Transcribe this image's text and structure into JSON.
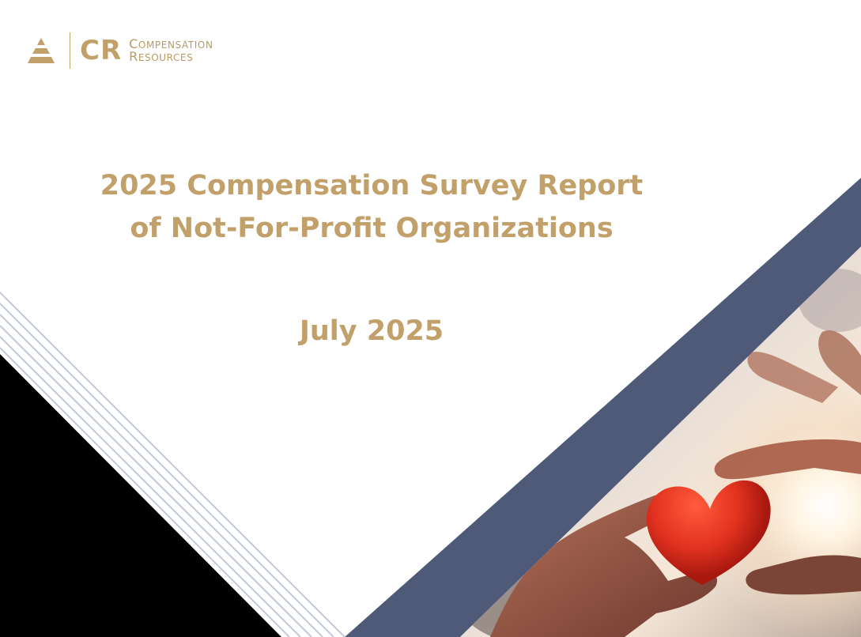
{
  "logo": {
    "monogram": "CR",
    "name_line1": "Compensation",
    "name_line2": "Resources",
    "icon": "pyramid-logo-icon"
  },
  "title": {
    "line1": "2025 Compensation Survey Report",
    "line2": "of Not-For-Profit Organizations"
  },
  "date": "July 2025",
  "photo": {
    "icon": "hands-holding-heart-photo"
  },
  "colors": {
    "gold": "#c2a06a",
    "navy_band": "#4f5a78",
    "pinstripe": "#c3c9d9",
    "black_corner": "#000000"
  }
}
